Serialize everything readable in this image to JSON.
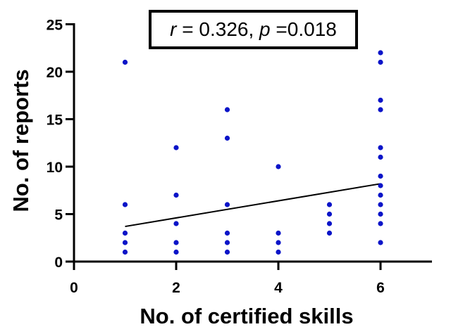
{
  "chart_data": {
    "type": "scatter",
    "title": "",
    "xlabel": "No. of certified skills",
    "ylabel": "No. of reports",
    "xlim": [
      0,
      7
    ],
    "ylim": [
      0,
      25
    ],
    "x_ticks": [
      0,
      2,
      4,
      6
    ],
    "y_ticks": [
      0,
      5,
      10,
      15,
      20,
      25
    ],
    "grid": false,
    "legend": null,
    "point_color": "#0a14c8",
    "series": [
      {
        "name": "reports",
        "points": [
          [
            1,
            21
          ],
          [
            1,
            6
          ],
          [
            1,
            3
          ],
          [
            1,
            2
          ],
          [
            1,
            1
          ],
          [
            2,
            12
          ],
          [
            2,
            7
          ],
          [
            2,
            4
          ],
          [
            2,
            2
          ],
          [
            2,
            1
          ],
          [
            3,
            16
          ],
          [
            3,
            13
          ],
          [
            3,
            6
          ],
          [
            3,
            3
          ],
          [
            3,
            2
          ],
          [
            3,
            1
          ],
          [
            4,
            10
          ],
          [
            4,
            3
          ],
          [
            4,
            2
          ],
          [
            4,
            1
          ],
          [
            5,
            6
          ],
          [
            5,
            5
          ],
          [
            5,
            4
          ],
          [
            5,
            3
          ],
          [
            6,
            22
          ],
          [
            6,
            21
          ],
          [
            6,
            17
          ],
          [
            6,
            16
          ],
          [
            6,
            12
          ],
          [
            6,
            11
          ],
          [
            6,
            9
          ],
          [
            6,
            8
          ],
          [
            6,
            7
          ],
          [
            6,
            6
          ],
          [
            6,
            5
          ],
          [
            6,
            4
          ],
          [
            6,
            2
          ]
        ]
      }
    ],
    "regression_line": {
      "x": [
        1,
        6
      ],
      "y": [
        3.7,
        8.2
      ],
      "color": "#000000"
    },
    "annotation": {
      "r_symbol": "r",
      "r_value": "0.326",
      "p_symbol": "p",
      "p_value": "0.018"
    }
  }
}
